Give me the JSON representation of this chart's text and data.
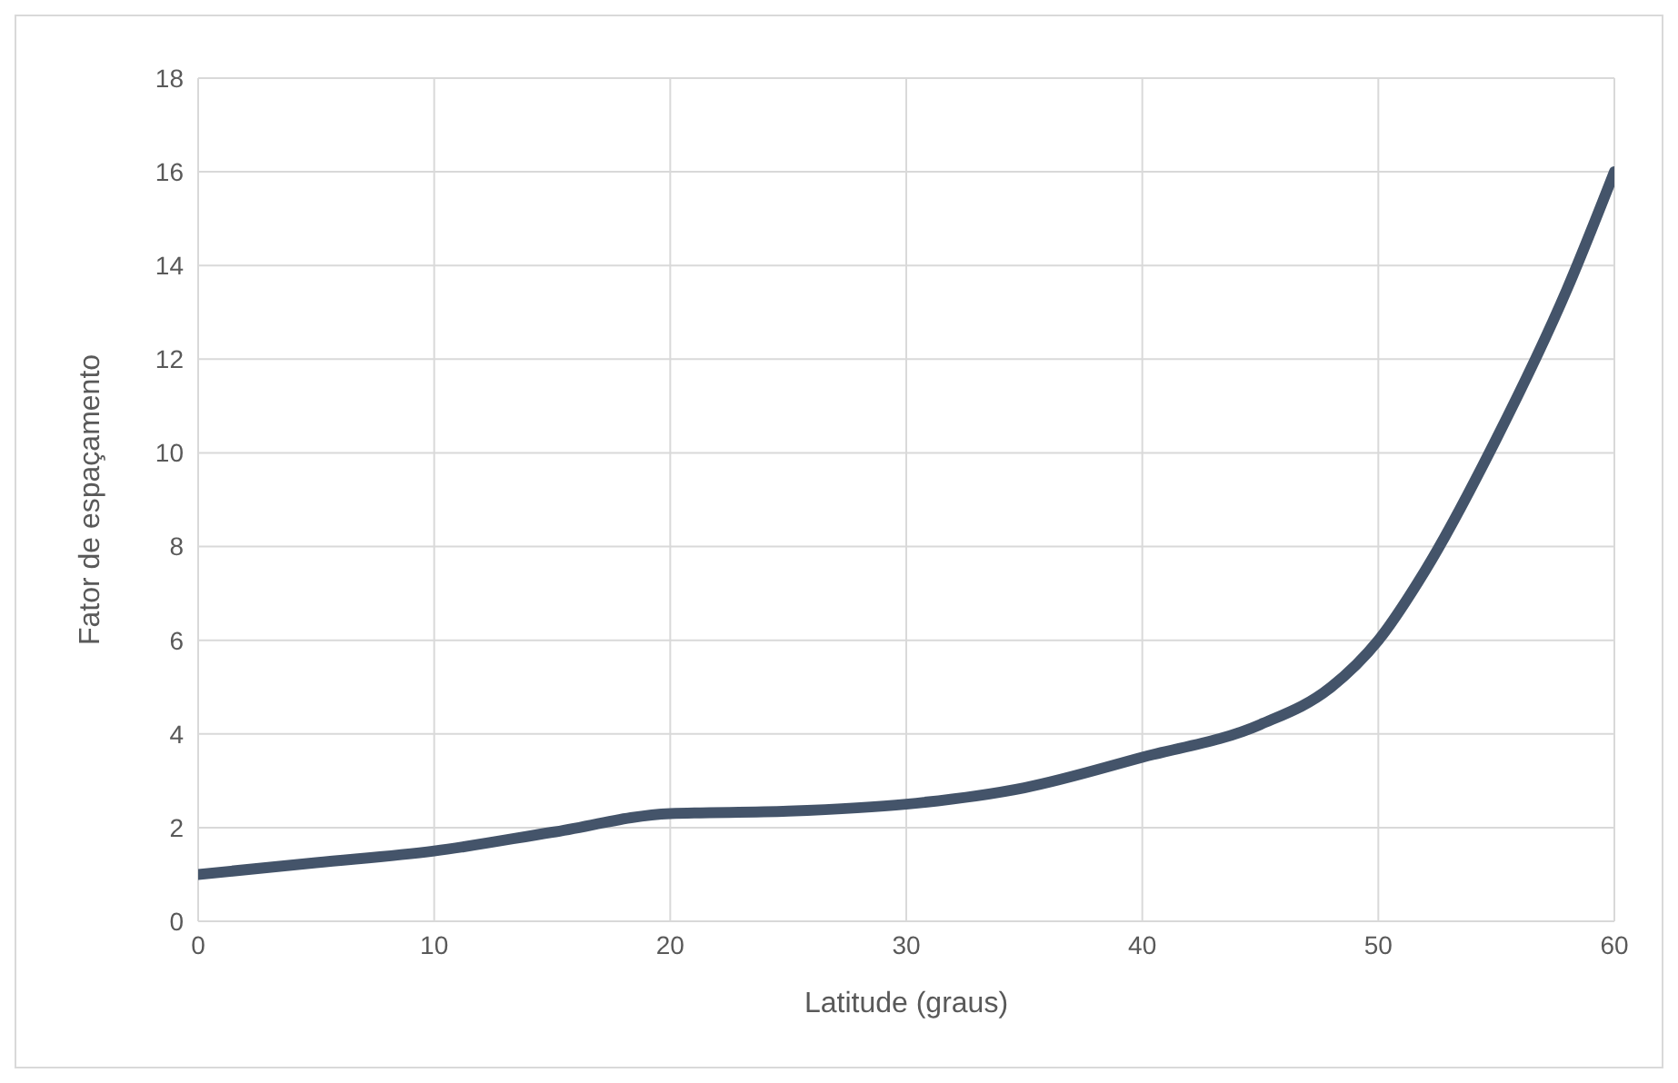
{
  "chart_data": {
    "type": "line",
    "xlabel": "Latitude (graus)",
    "ylabel": "Fator de espaçamento",
    "x": [
      0,
      5,
      10,
      15,
      20,
      25,
      30,
      35,
      40,
      45,
      48,
      50,
      52,
      55,
      58,
      60
    ],
    "series": [
      {
        "color": "#44546a",
        "values": [
          1,
          1.25,
          1.5,
          1.9,
          2.3,
          2.35,
          2.5,
          2.85,
          3.5,
          4.2,
          5,
          6,
          7.5,
          10.3,
          13.5,
          16
        ]
      }
    ],
    "xlim": [
      0,
      60
    ],
    "xticks": [
      0,
      10,
      20,
      30,
      40,
      50,
      60
    ],
    "ylim": [
      0,
      18
    ],
    "yticks": [
      0,
      2,
      4,
      6,
      8,
      10,
      12,
      14,
      16,
      18
    ],
    "grid": true,
    "legend": false,
    "marker": "none",
    "line_style": "solid"
  }
}
